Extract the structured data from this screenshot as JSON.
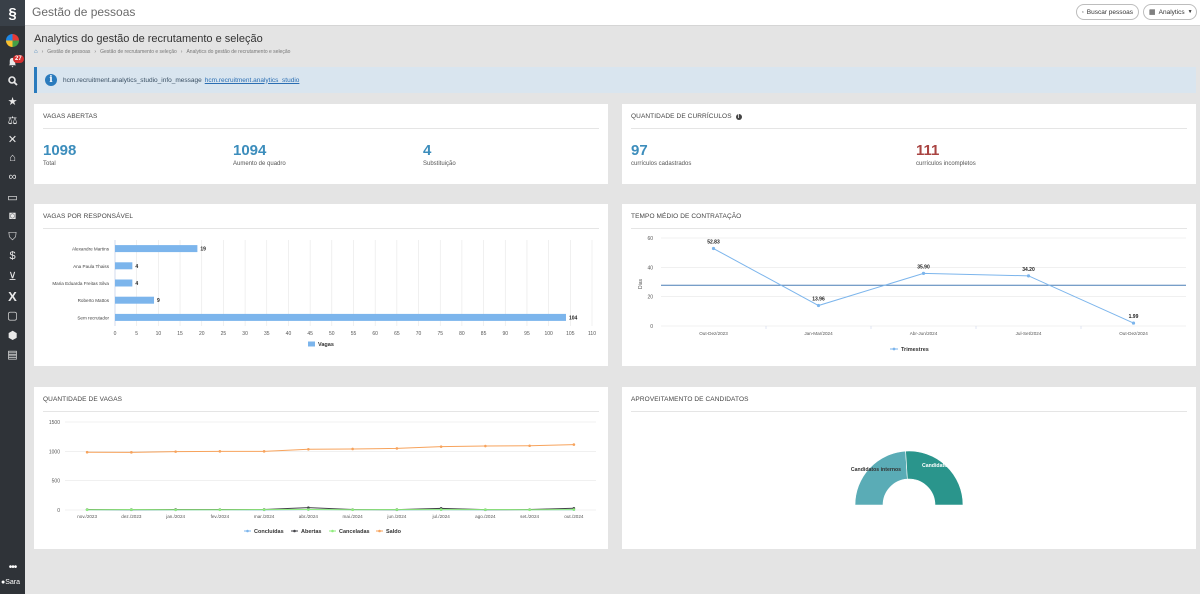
{
  "app": {
    "title": "Gestão de pessoas",
    "search_button": "Buscar pessoas",
    "module_select": "Analytics"
  },
  "sidebar": {
    "notification_count": "27",
    "icons": [
      "avatar-icon",
      "notifications-icon",
      "search-icon",
      "star-icon",
      "scale-icon",
      "tools-icon",
      "bank-icon",
      "handshake-icon",
      "briefcase-icon",
      "safe-icon",
      "person-card-icon",
      "payments-icon",
      "cart-icon",
      "x-icon",
      "monitor-icon",
      "box-icon",
      "clipboard-icon"
    ],
    "more": "•••",
    "assistant": "Sara"
  },
  "page": {
    "title": "Analytics do gestão de recrutamento e seleção",
    "breadcrumb": [
      "Gestão de pessoas",
      "Gestão de recrutamento e seleção",
      "Analytics do gestão de recrutamento e seleção"
    ]
  },
  "info_banner": {
    "message": "hcm.recruitment.analytics_studio_info_message",
    "link": "hcm.recruitment.analytics_studio"
  },
  "vagas_abertas": {
    "title": "Vagas abertas",
    "items": [
      {
        "value": "1098",
        "label": "Total"
      },
      {
        "value": "1094",
        "label": "Aumento de quadro"
      },
      {
        "value": "4",
        "label": "Substituição"
      }
    ]
  },
  "curriculos": {
    "title": "Quantidade de currículos",
    "items": [
      {
        "value": "97",
        "label": "currículos cadastrados",
        "color": "#3c8dbc"
      },
      {
        "value": "111",
        "label": "currículos incompletos",
        "color": "#a94442"
      }
    ]
  },
  "vagas_responsavel": {
    "title": "Vagas por responsável"
  },
  "tempo_medio": {
    "title": "Tempo médio de contratação"
  },
  "quantidade_vagas": {
    "title": "Quantidade de vagas"
  },
  "aproveitamento": {
    "title": "Aproveitamento de candidatos"
  },
  "chart_data": [
    {
      "type": "bar",
      "orientation": "horizontal",
      "categories": [
        "Alexandre Martins",
        "Ana Paula Thaiss",
        "Maria Eduarda Freitas Silva",
        "Roberto Mattos",
        "Sem recrutador"
      ],
      "series": [
        {
          "name": "Vagas",
          "values": [
            19,
            4,
            4,
            9,
            104
          ],
          "color": "#7cb5ec"
        }
      ],
      "data_labels": [
        "19",
        "4",
        "4",
        "9",
        "104"
      ],
      "xticks": [
        "0",
        "5",
        "10",
        "15",
        "20",
        "25",
        "30",
        "35",
        "40",
        "45",
        "50",
        "55",
        "60",
        "65",
        "70",
        "75",
        "80",
        "85",
        "90",
        "95",
        "100",
        "105",
        "110"
      ],
      "xlim": [
        0,
        110
      ],
      "legend": "bottom-center"
    },
    {
      "type": "line",
      "categories": [
        "Out-Dez/2023",
        "Jan-Mar/2024",
        "Abr-Jun/2024",
        "Jul-Set/2024",
        "Out-Dez/2024"
      ],
      "series": [
        {
          "name": "Trimestres",
          "values": [
            52.83,
            13.96,
            35.9,
            34.2,
            1.99
          ],
          "color": "#7cb5ec"
        }
      ],
      "data_labels": [
        "52.83",
        "13.96",
        "35.90",
        "34.20",
        "1.99"
      ],
      "average_line": 27.78,
      "ylabel": "Dias",
      "yticks": [
        "0",
        "20",
        "40",
        "60"
      ],
      "ylim": [
        0,
        60
      ],
      "legend": "bottom-center"
    },
    {
      "type": "line",
      "categories": [
        "nov./2023",
        "dez./2023",
        "jan./2024",
        "fev./2024",
        "mar./2024",
        "abr./2024",
        "mai./2024",
        "jun./2024",
        "jul./2024",
        "ago./2024",
        "set./2024",
        "out./2024"
      ],
      "series": [
        {
          "name": "Concluídas",
          "values": [
            4,
            3,
            3,
            4,
            2,
            6,
            4,
            3,
            5,
            3,
            4,
            5
          ],
          "color": "#7cb5ec"
        },
        {
          "name": "Abertas",
          "values": [
            8,
            7,
            9,
            8,
            9,
            40,
            8,
            7,
            28,
            6,
            8,
            30
          ],
          "color": "#434348"
        },
        {
          "name": "Canceladas",
          "values": [
            5,
            6,
            4,
            5,
            6,
            8,
            5,
            6,
            7,
            6,
            5,
            7
          ],
          "color": "#90ed7d"
        },
        {
          "name": "Saldo",
          "values": [
            985,
            983,
            995,
            1000,
            1000,
            1035,
            1040,
            1050,
            1080,
            1090,
            1095,
            1115
          ],
          "color": "#f7a35c"
        }
      ],
      "yticks": [
        "0",
        "500",
        "1000",
        "1500"
      ],
      "ylim": [
        0,
        1500
      ],
      "legend": "bottom-center"
    },
    {
      "type": "pie",
      "style": "semi-donut",
      "slices": [
        {
          "name": "Candidatos internos",
          "value": 48,
          "color": "#5aacb6"
        },
        {
          "name": "Candidatos externos",
          "value": 52,
          "color": "#2a958c"
        }
      ]
    }
  ]
}
